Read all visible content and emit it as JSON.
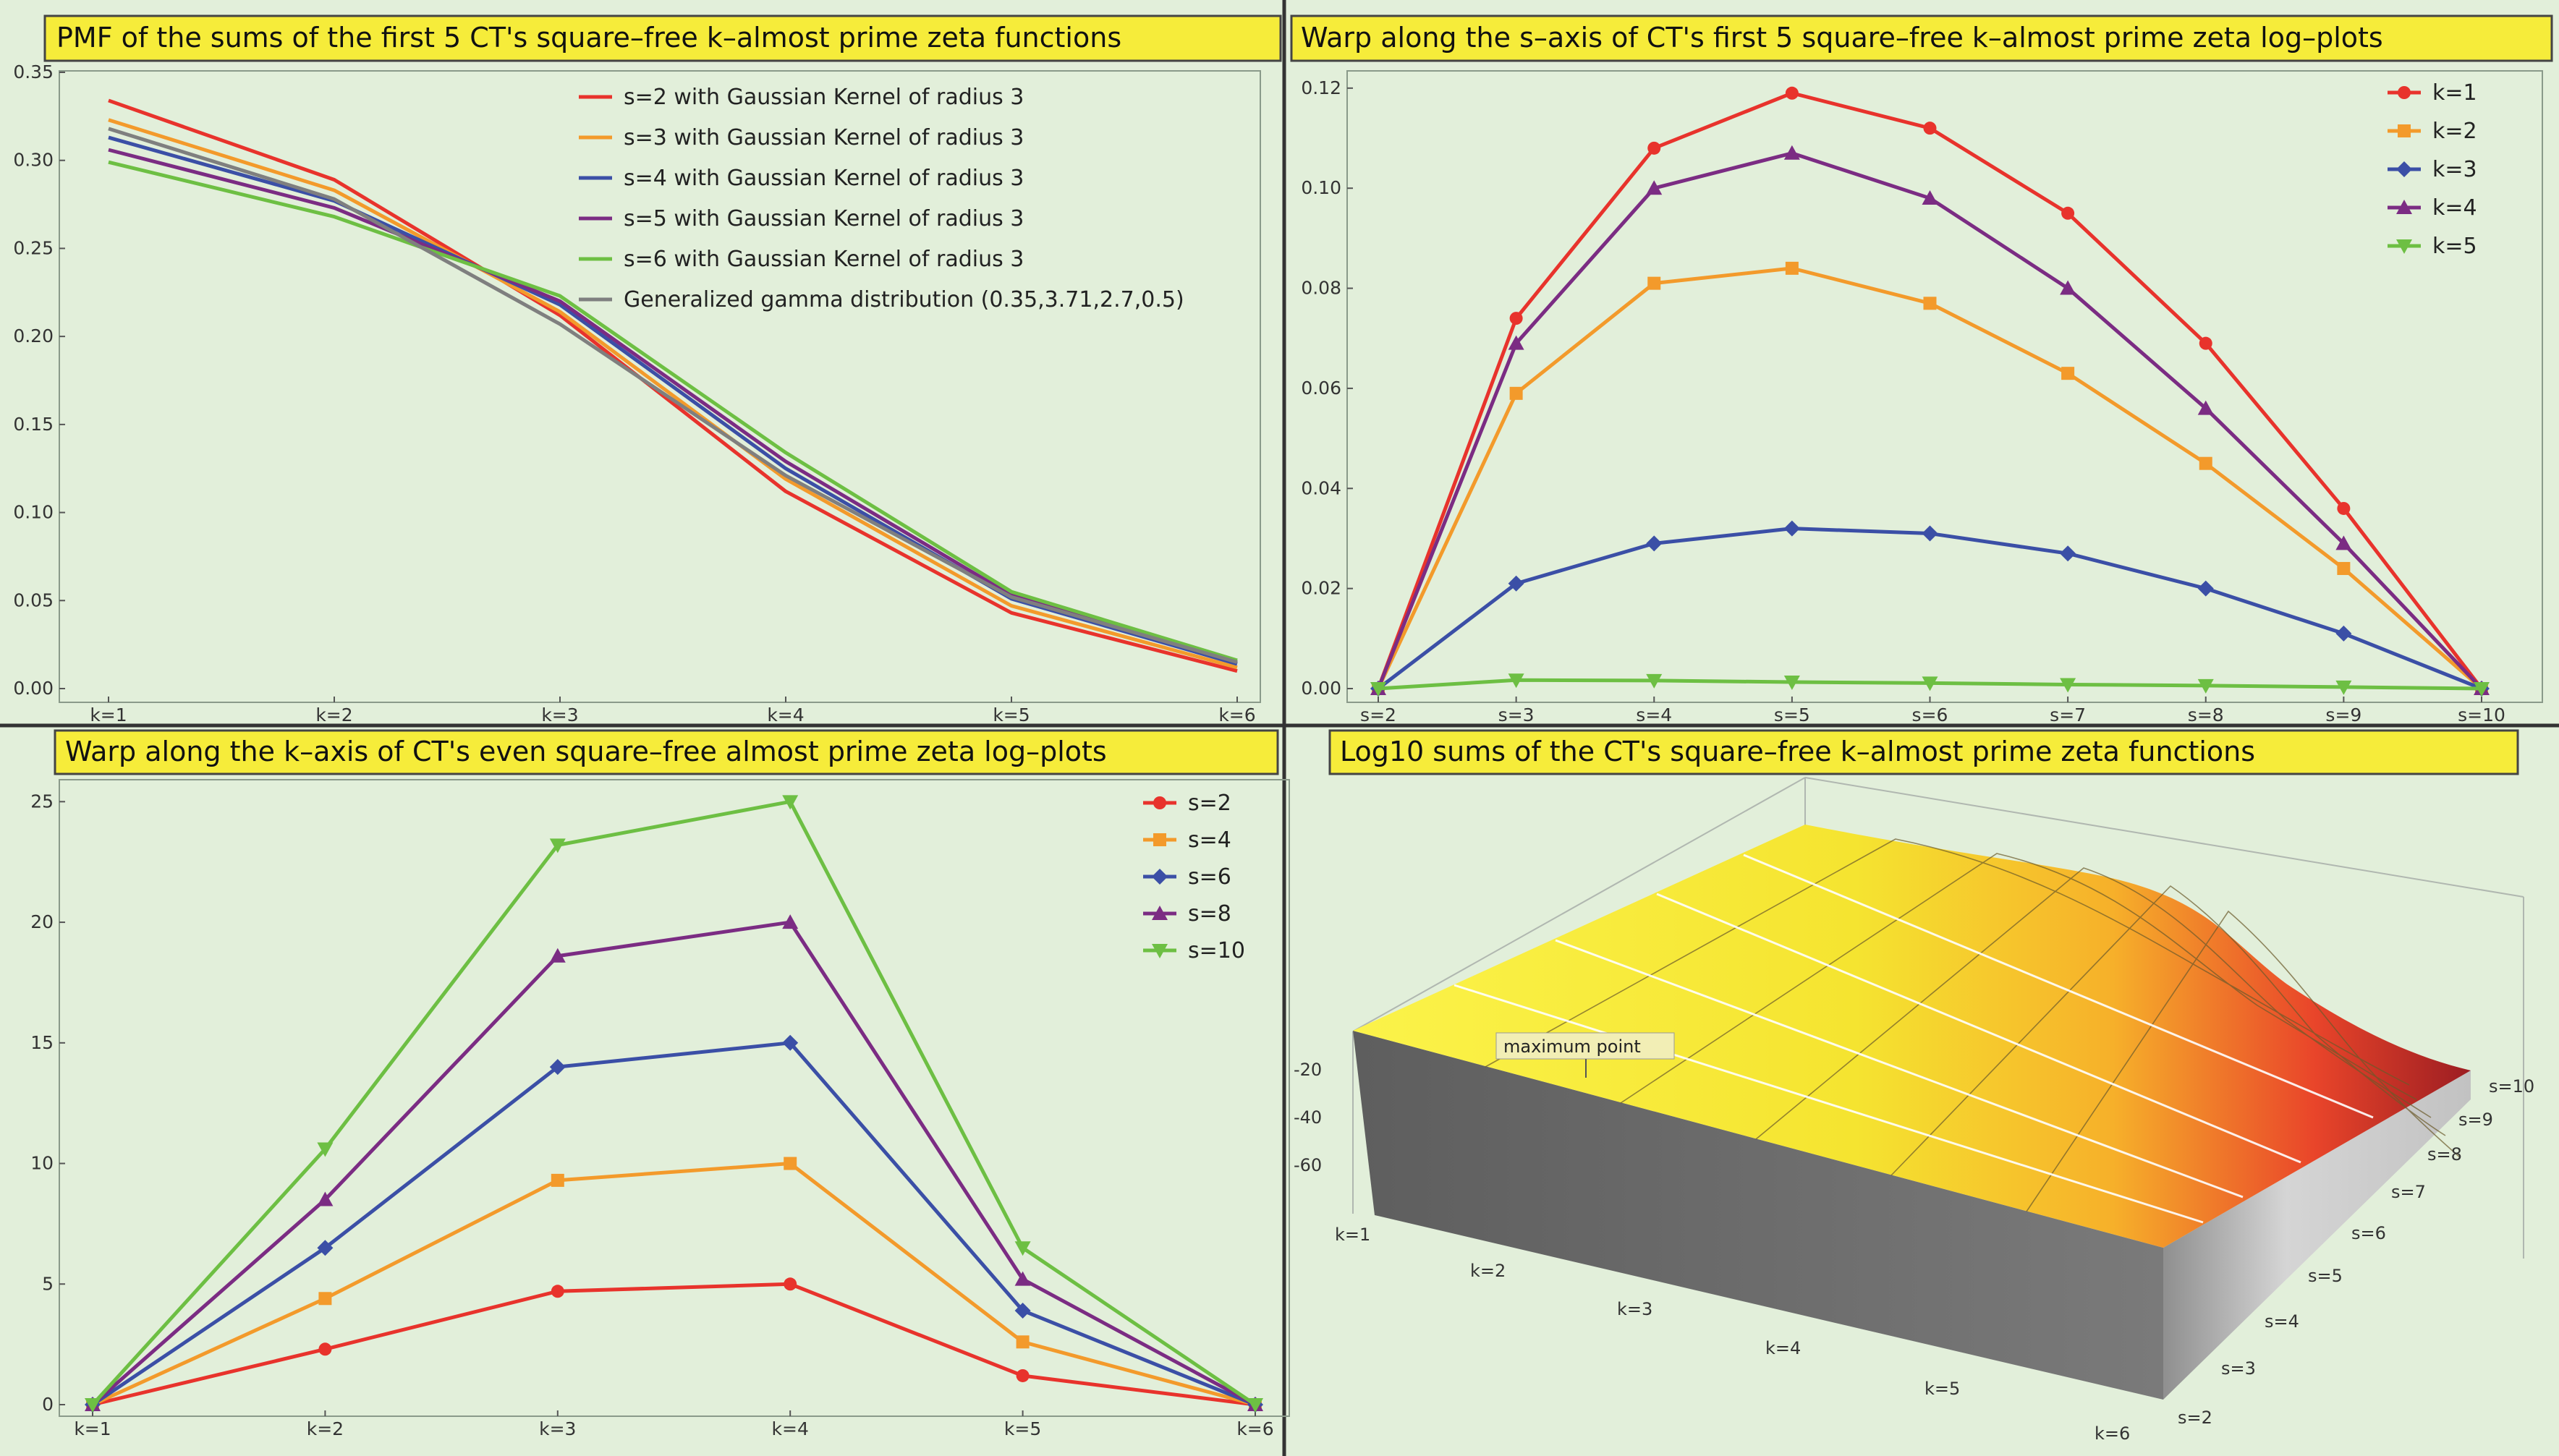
{
  "colors": {
    "panel_bg": "#e2efda",
    "title_bg": "#f6ec3a",
    "red": "#e8332c",
    "orange": "#f39a2b",
    "blue": "#3b4fa6",
    "purple": "#7b2c83",
    "green": "#6dbf43",
    "gray": "#7f7f7f"
  },
  "chart_data": [
    {
      "type": "line",
      "title": "PMF of the sums of the first 5 CT's square–free k–almost prime zeta functions",
      "categories": [
        "k=1",
        "k=2",
        "k=3",
        "k=4",
        "k=5",
        "k=6"
      ],
      "y_ticks": [
        "0.00",
        "0.05",
        "0.10",
        "0.15",
        "0.20",
        "0.25",
        "0.30",
        "0.35"
      ],
      "ylim": [
        0,
        0.35
      ],
      "grid": false,
      "legend_position": "top-right",
      "series": [
        {
          "name": "s=2 with Gaussian Kernel of radius 3",
          "color": "#e8332c",
          "values": [
            0.334,
            0.289,
            0.212,
            0.112,
            0.043,
            0.01
          ]
        },
        {
          "name": "s=3 with Gaussian Kernel of radius 3",
          "color": "#f39a2b",
          "values": [
            0.323,
            0.283,
            0.214,
            0.119,
            0.047,
            0.012
          ]
        },
        {
          "name": "s=4 with Gaussian Kernel of radius 3",
          "color": "#3b4fa6",
          "values": [
            0.313,
            0.277,
            0.218,
            0.125,
            0.051,
            0.014
          ]
        },
        {
          "name": "s=5 with Gaussian Kernel of radius 3",
          "color": "#7b2c83",
          "values": [
            0.306,
            0.273,
            0.22,
            0.129,
            0.053,
            0.015
          ]
        },
        {
          "name": "s=6 with Gaussian Kernel of radius 3",
          "color": "#6dbf43",
          "values": [
            0.299,
            0.268,
            0.223,
            0.134,
            0.055,
            0.016
          ]
        },
        {
          "name": "Generalized gamma distribution (0.35,3.71,2.7,0.5)",
          "color": "#7f7f7f",
          "values": [
            0.318,
            0.278,
            0.207,
            0.121,
            0.052,
            0.015
          ]
        }
      ]
    },
    {
      "type": "line",
      "title": "Warp along the s–axis of CT's first 5 square–free k–almost prime zeta log–plots",
      "categories": [
        "s=2",
        "s=3",
        "s=4",
        "s=5",
        "s=6",
        "s=7",
        "s=8",
        "s=9",
        "s=10"
      ],
      "y_ticks": [
        "0.00",
        "0.02",
        "0.04",
        "0.06",
        "0.08",
        "0.10",
        "0.12"
      ],
      "ylim": [
        0,
        0.122
      ],
      "grid": false,
      "legend_position": "top-right",
      "series": [
        {
          "name": "k=1",
          "marker": "circle",
          "color": "#e8332c",
          "values": [
            0,
            0.074,
            0.108,
            0.119,
            0.112,
            0.095,
            0.069,
            0.036,
            0
          ]
        },
        {
          "name": "k=2",
          "marker": "square",
          "color": "#f39a2b",
          "values": [
            0,
            0.059,
            0.081,
            0.084,
            0.077,
            0.063,
            0.045,
            0.024,
            0
          ]
        },
        {
          "name": "k=3",
          "marker": "diamond",
          "color": "#3b4fa6",
          "values": [
            0,
            0.021,
            0.029,
            0.032,
            0.031,
            0.027,
            0.02,
            0.011,
            0
          ]
        },
        {
          "name": "k=4",
          "marker": "triangle-up",
          "color": "#7b2c83",
          "values": [
            0,
            0.069,
            0.1,
            0.107,
            0.098,
            0.08,
            0.056,
            0.029,
            0
          ]
        },
        {
          "name": "k=5",
          "marker": "triangle-down",
          "color": "#6dbf43",
          "values": [
            0,
            0.0017,
            0.0016,
            0.0013,
            0.0011,
            0.0008,
            0.0006,
            0.0003,
            0
          ]
        }
      ]
    },
    {
      "type": "line",
      "title": "Warp along the k–axis of CT's even square–free almost prime zeta log–plots",
      "categories": [
        "k=1",
        "k=2",
        "k=3",
        "k=4",
        "k=5",
        "k=6"
      ],
      "y_ticks": [
        "0",
        "5",
        "10",
        "15",
        "20",
        "25"
      ],
      "ylim": [
        0,
        26
      ],
      "grid": false,
      "legend_position": "top-right",
      "series": [
        {
          "name": "s=2",
          "marker": "circle",
          "color": "#e8332c",
          "values": [
            0,
            2.3,
            4.7,
            5.0,
            1.2,
            0
          ]
        },
        {
          "name": "s=4",
          "marker": "square",
          "color": "#f39a2b",
          "values": [
            0,
            4.4,
            9.3,
            10.0,
            2.6,
            0
          ]
        },
        {
          "name": "s=6",
          "marker": "diamond",
          "color": "#3b4fa6",
          "values": [
            0,
            6.5,
            14.0,
            15.0,
            3.9,
            0
          ]
        },
        {
          "name": "s=8",
          "marker": "triangle-up",
          "color": "#7b2c83",
          "values": [
            0,
            8.5,
            18.6,
            20.0,
            5.2,
            0
          ]
        },
        {
          "name": "s=10",
          "marker": "triangle-down",
          "color": "#6dbf43",
          "values": [
            0,
            10.6,
            23.2,
            25.0,
            6.5,
            0
          ]
        }
      ]
    },
    {
      "type": "area",
      "subtype": "3d-surface",
      "title": "Log10 sums of the CT's square–free k–almost prime zeta functions",
      "z_ticks": [
        "-20",
        "-40",
        "-60"
      ],
      "k_ticks": [
        "k=1",
        "k=2",
        "k=3",
        "k=4",
        "k=5",
        "k=6"
      ],
      "s_ticks": [
        "s=2",
        "s=3",
        "s=4",
        "s=5",
        "s=6",
        "s=7",
        "s=8",
        "s=9",
        "s=10"
      ],
      "annotation": "maximum point"
    }
  ]
}
